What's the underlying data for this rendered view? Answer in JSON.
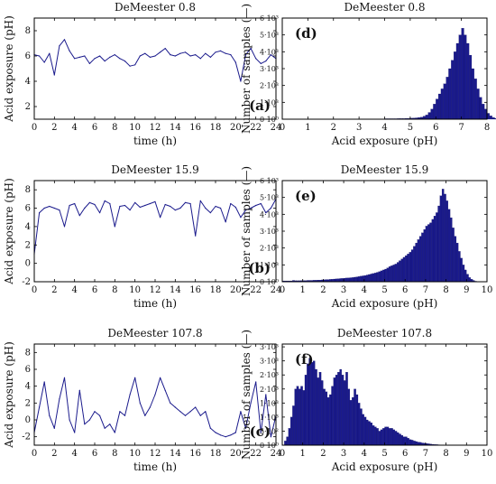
{
  "colors": {
    "line": "#1a1a8c",
    "bar": "#1a1a8c",
    "bar_edge": "#0a0a5a",
    "axis": "#000000"
  },
  "chart_data": [
    {
      "id": "a",
      "type": "line",
      "title": "DeMeester 0.8",
      "panel_label": "(a)",
      "xlabel": "time (h)",
      "ylabel": "Acid exposure (pH)",
      "xlim": [
        0,
        24
      ],
      "ylim": [
        1,
        9
      ],
      "xticks": [
        0,
        2,
        4,
        6,
        8,
        10,
        12,
        14,
        16,
        18,
        20,
        22,
        24
      ],
      "yticks": [
        2,
        4,
        6,
        8
      ],
      "x": [
        0,
        0.5,
        1,
        1.5,
        2,
        2.5,
        3,
        3.5,
        4,
        4.5,
        5,
        5.5,
        6,
        6.5,
        7,
        7.5,
        8,
        8.5,
        9,
        9.5,
        10,
        10.5,
        11,
        11.5,
        12,
        12.5,
        13,
        13.5,
        14,
        14.5,
        15,
        15.5,
        16,
        16.5,
        17,
        17.5,
        18,
        18.5,
        19,
        19.5,
        20,
        20.5,
        21,
        21.5,
        22,
        22.5,
        23,
        23.5,
        24
      ],
      "y": [
        6.1,
        6.0,
        5.5,
        6.2,
        4.5,
        6.8,
        7.3,
        6.4,
        5.8,
        5.9,
        6.0,
        5.4,
        5.8,
        6.0,
        5.6,
        5.9,
        6.1,
        5.8,
        5.6,
        5.2,
        5.3,
        6.0,
        6.2,
        5.9,
        6.0,
        6.3,
        6.6,
        6.1,
        6.0,
        6.2,
        6.3,
        6.0,
        6.1,
        5.8,
        6.2,
        5.9,
        6.3,
        6.4,
        6.2,
        6.1,
        5.5,
        4.0,
        6.1,
        6.6,
        5.8,
        5.4,
        5.6,
        6.1,
        5.8
      ]
    },
    {
      "id": "b",
      "type": "line",
      "title": "DeMeester 15.9",
      "panel_label": "(b)",
      "xlabel": "time (h)",
      "ylabel": "Acid exposure (pH)",
      "xlim": [
        0,
        24
      ],
      "ylim": [
        -2,
        9
      ],
      "xticks": [
        0,
        2,
        4,
        6,
        8,
        10,
        12,
        14,
        16,
        18,
        20,
        22,
        24
      ],
      "yticks": [
        -2,
        0,
        2,
        4,
        6,
        8
      ],
      "x": [
        0,
        0.5,
        1,
        1.5,
        2,
        2.5,
        3,
        3.5,
        4,
        4.5,
        5,
        5.5,
        6,
        6.5,
        7,
        7.5,
        8,
        8.5,
        9,
        9.5,
        10,
        10.5,
        11,
        11.5,
        12,
        12.5,
        13,
        13.5,
        14,
        14.5,
        15,
        15.5,
        16,
        16.5,
        17,
        17.5,
        18,
        18.5,
        19,
        19.5,
        20,
        20.5,
        21,
        21.5,
        22,
        22.5,
        23,
        23.5,
        24
      ],
      "y": [
        1.0,
        5.5,
        6.0,
        6.2,
        6.0,
        5.8,
        4.0,
        6.3,
        6.5,
        5.2,
        6.0,
        6.6,
        6.4,
        5.5,
        6.8,
        6.5,
        4.0,
        6.2,
        6.3,
        5.8,
        6.6,
        6.1,
        6.3,
        6.5,
        6.7,
        5.0,
        6.4,
        6.2,
        5.8,
        6.0,
        6.6,
        6.5,
        3.0,
        6.8,
        6.0,
        5.5,
        6.2,
        6.0,
        4.5,
        6.5,
        6.1,
        5.0,
        5.8,
        6.0,
        6.3,
        6.5,
        5.5,
        6.0,
        7.0
      ]
    },
    {
      "id": "c",
      "type": "line",
      "title": "DeMeester 107.8",
      "panel_label": "(c)",
      "xlabel": "time (h)",
      "ylabel": "Acid exposure (pH)",
      "xlim": [
        0,
        24
      ],
      "ylim": [
        -3,
        9
      ],
      "xticks": [
        0,
        2,
        4,
        6,
        8,
        10,
        12,
        14,
        16,
        18,
        20,
        22,
        24
      ],
      "yticks": [
        -2,
        0,
        2,
        4,
        6,
        8
      ],
      "x": [
        0,
        0.5,
        1,
        1.5,
        2,
        2.5,
        3,
        3.5,
        4,
        4.5,
        5,
        5.5,
        6,
        6.5,
        7,
        7.5,
        8,
        8.5,
        9,
        9.5,
        10,
        10.5,
        11,
        11.5,
        12,
        12.5,
        13,
        13.5,
        14,
        14.5,
        15,
        15.5,
        16,
        16.5,
        17,
        17.5,
        18,
        18.5,
        19,
        19.5,
        20,
        20.5,
        21,
        21.5,
        22,
        22.5,
        23,
        23.5,
        24
      ],
      "y": [
        -1.5,
        1.5,
        4.5,
        0.5,
        -1.0,
        2.5,
        5.0,
        0.0,
        -1.5,
        3.5,
        -0.5,
        0.0,
        1.0,
        0.5,
        -1.0,
        -0.5,
        -1.5,
        1.0,
        0.5,
        3.0,
        5.0,
        2.0,
        0.5,
        1.5,
        3.0,
        5.0,
        3.5,
        2.0,
        1.5,
        1.0,
        0.5,
        1.0,
        1.5,
        0.5,
        1.0,
        -1.0,
        -1.5,
        -1.8,
        -2.0,
        -1.8,
        -1.5,
        1.0,
        -1.0,
        2.0,
        4.5,
        -1.5,
        3.0,
        -2.0,
        0.5
      ]
    },
    {
      "id": "d",
      "type": "bar",
      "title": "DeMeester 0.8",
      "panel_label": "(d)",
      "xlabel": "Acid exposure (pH)",
      "ylabel": "Number of samples (—)",
      "xlim": [
        0,
        8
      ],
      "ylim": [
        0,
        6000
      ],
      "xticks": [
        0,
        1,
        2,
        3,
        4,
        5,
        6,
        7,
        8
      ],
      "ytick_values": [
        0,
        1000,
        2000,
        3000,
        4000,
        5000,
        6000
      ],
      "ytick_labels": [
        "0·10⁰",
        "1·10³",
        "2·10³",
        "3·10³",
        "4·10³",
        "5·10³",
        "6·10³"
      ],
      "bin_start": 0,
      "bin_width": 0.1,
      "values": [
        0,
        0,
        0,
        0,
        0,
        0,
        0,
        0,
        0,
        0,
        0,
        0,
        0,
        0,
        0,
        0,
        0,
        0,
        0,
        0,
        0,
        0,
        0,
        0,
        0,
        0,
        0,
        0,
        0,
        0,
        0,
        0,
        0,
        0,
        0,
        20,
        20,
        20,
        20,
        20,
        30,
        30,
        30,
        30,
        30,
        40,
        40,
        40,
        50,
        50,
        60,
        70,
        80,
        100,
        120,
        180,
        250,
        400,
        600,
        900,
        1200,
        1500,
        1800,
        2100,
        2500,
        3000,
        3500,
        4000,
        4500,
        5000,
        5400,
        5000,
        4500,
        3800,
        3000,
        2400,
        1800,
        1300,
        900,
        600,
        350,
        200,
        100,
        50,
        20,
        10
      ]
    },
    {
      "id": "e",
      "type": "bar",
      "title": "DeMeester 15.9",
      "panel_label": "(e)",
      "xlabel": "Acid exposure (pH)",
      "ylabel": "Number of samples (—)",
      "xlim": [
        0,
        10
      ],
      "ylim": [
        0,
        6000
      ],
      "xticks": [
        0,
        1,
        2,
        3,
        4,
        5,
        6,
        7,
        8,
        9,
        10
      ],
      "ytick_values": [
        0,
        1000,
        2000,
        3000,
        4000,
        5000,
        6000
      ],
      "ytick_labels": [
        "0·10⁰",
        "1·10³",
        "2·10³",
        "3·10³",
        "4·10³",
        "5·10³",
        "6·10³"
      ],
      "bin_start": 0,
      "bin_width": 0.1,
      "values": [
        50,
        50,
        50,
        50,
        50,
        80,
        60,
        60,
        60,
        70,
        70,
        70,
        80,
        80,
        80,
        90,
        90,
        100,
        100,
        110,
        120,
        130,
        130,
        140,
        150,
        160,
        170,
        180,
        190,
        200,
        210,
        220,
        230,
        240,
        250,
        270,
        290,
        310,
        330,
        350,
        370,
        400,
        430,
        460,
        490,
        520,
        560,
        600,
        650,
        700,
        750,
        820,
        900,
        950,
        1000,
        1050,
        1150,
        1250,
        1350,
        1450,
        1550,
        1650,
        1750,
        1900,
        2100,
        2300,
        2500,
        2700,
        2900,
        3100,
        3300,
        3400,
        3500,
        3700,
        3900,
        4100,
        4500,
        5100,
        5500,
        5200,
        4800,
        4300,
        3800,
        3200,
        2700,
        2300,
        1800,
        1400,
        1000,
        700,
        450,
        250,
        150,
        80,
        30,
        10,
        0,
        0,
        0,
        0
      ]
    },
    {
      "id": "f",
      "type": "bar",
      "title": "DeMeester 107.8",
      "panel_label": "(f)",
      "xlabel": "Acid exposure (pH)",
      "ylabel": "Number of samples (—)",
      "xlim": [
        0,
        10
      ],
      "ylim": [
        0,
        3600
      ],
      "xticks": [
        0,
        1,
        2,
        3,
        4,
        5,
        6,
        7,
        8,
        9,
        10
      ],
      "ytick_values": [
        0,
        500,
        1000,
        1500,
        2000,
        2500,
        3000,
        3500
      ],
      "ytick_labels": [
        "0·10⁰",
        "5·10²",
        "1·10³",
        "1·10³",
        "2·10³",
        "2·10³",
        "3·10³",
        "3·10³"
      ],
      "bin_start": 0,
      "bin_width": 0.1,
      "values": [
        0,
        150,
        300,
        600,
        1000,
        1400,
        2000,
        2100,
        2000,
        2100,
        1950,
        2500,
        2900,
        3100,
        2950,
        3000,
        2700,
        2400,
        2600,
        2300,
        2000,
        1900,
        1700,
        1800,
        2100,
        2400,
        2500,
        2600,
        2700,
        2500,
        2300,
        2600,
        2000,
        1600,
        1700,
        2000,
        1800,
        1500,
        1300,
        1100,
        1000,
        900,
        850,
        800,
        700,
        650,
        600,
        500,
        550,
        600,
        650,
        650,
        600,
        600,
        550,
        500,
        450,
        400,
        350,
        300,
        300,
        250,
        200,
        180,
        150,
        130,
        110,
        100,
        80,
        70,
        60,
        50,
        40,
        30,
        25,
        20,
        15,
        10,
        5,
        0,
        0,
        0,
        0,
        0,
        0,
        0,
        0,
        0,
        0,
        0,
        0,
        0,
        0,
        0,
        0,
        0,
        0,
        0,
        0,
        0
      ]
    }
  ]
}
